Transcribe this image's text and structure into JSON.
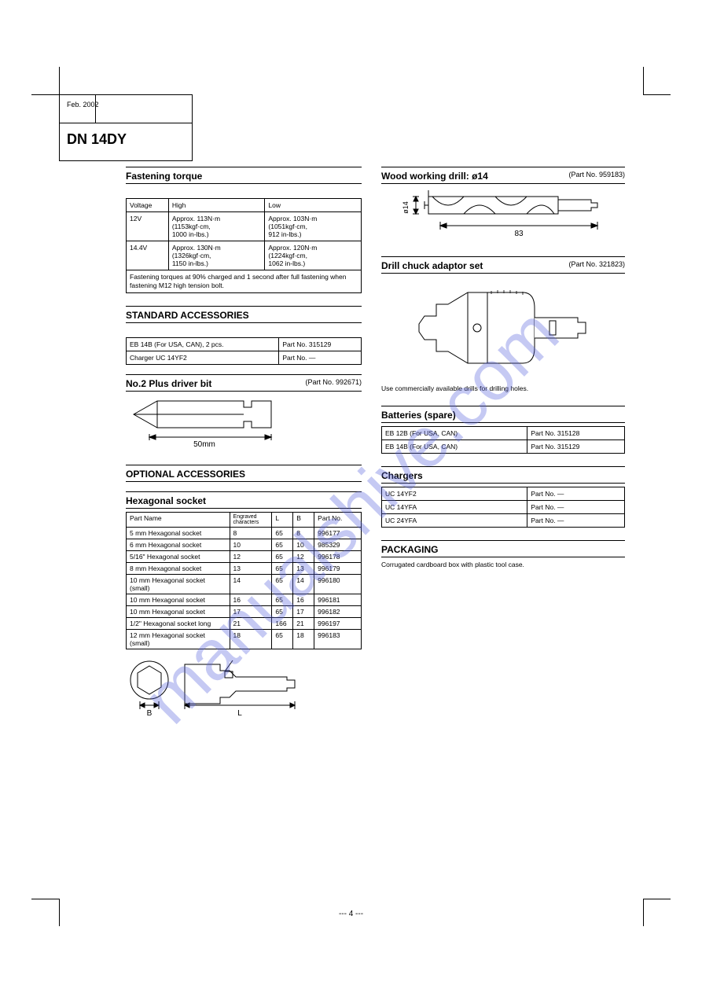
{
  "header": {
    "date": "Feb. 2002",
    "model": "DN 14DY"
  },
  "crop_style": {
    "stroke": "#000000",
    "len": 35
  },
  "left": {
    "sec1": {
      "title": "Fastening torque",
      "cols": [
        "Voltage",
        "High",
        "Low"
      ],
      "rows": [
        {
          "v": "12V",
          "hi": "Approx. 113N·m\n(1153kgf·cm,\n1000 in-lbs.)",
          "lo": "Approx. 103N·m\n(1051kgf·cm,\n912 in-lbs.)"
        },
        {
          "v": "14.4V",
          "hi": "Approx. 130N·m\n(1326kgf·cm,\n1150 in-lbs.)",
          "lo": "Approx. 120N·m\n(1224kgf·cm,\n1062 in-lbs.)"
        }
      ],
      "foot": "Fastening torques at 90% charged and 1 second after full fastening when fastening M12 high tension bolt."
    },
    "sec2": {
      "title": "STANDARD ACCESSORIES",
      "table": {
        "cols": [
          "",
          ""
        ],
        "rows": [
          [
            "EB 14B (For USA, CAN), 2 pcs.",
            "Part No. 315129"
          ],
          [
            "Charger UC 14YF2",
            "Part No. —"
          ]
        ]
      },
      "item_title": "No.2 Plus driver bit",
      "item_pn": "(Part No. 992671)",
      "bit_len": "50mm"
    },
    "sec3": {
      "title": "OPTIONAL ACCESSORIES",
      "item": "Hexagonal socket",
      "cols": [
        "Part Name",
        "Engraved characters",
        "L",
        "B",
        "Part No."
      ],
      "rows": [
        [
          "5 mm Hexagonal socket",
          "8",
          "65",
          "8",
          "996177"
        ],
        [
          "6 mm Hexagonal socket",
          "10",
          "65",
          "10",
          "985329"
        ],
        [
          "5/16\" Hexagonal socket",
          "12",
          "65",
          "12",
          "996178"
        ],
        [
          "8 mm Hexagonal socket",
          "13",
          "65",
          "13",
          "996179"
        ],
        [
          "10 mm Hexagonal socket (small)",
          "14",
          "65",
          "14",
          "996180"
        ],
        [
          "10 mm Hexagonal socket",
          "16",
          "65",
          "16",
          "996181"
        ],
        [
          "10 mm Hexagonal socket",
          "17",
          "65",
          "17",
          "996182"
        ],
        [
          "1/2\" Hexagonal socket long",
          "21",
          "166",
          "21",
          "996197"
        ],
        [
          "12 mm Hexagonal socket (small)",
          "18",
          "65",
          "18",
          "996183"
        ]
      ],
      "fig": {
        "B": "B",
        "L": "L"
      }
    }
  },
  "right": {
    "sec1": {
      "title": "Wood working drill: ø14",
      "pn": "(Part No. 959183)",
      "dia": "ø14",
      "len": "83"
    },
    "sec2": {
      "title": "Drill chuck adaptor set",
      "pn": "(Part No. 321823)",
      "desc": "Use commercially available drills for drilling holes."
    },
    "sec3": {
      "title": "Batteries (spare)",
      "rows": [
        [
          "EB 12B (For USA, CAN)",
          "Part No. 315128"
        ],
        [
          "EB 14B (For USA, CAN)",
          "Part No. 315129"
        ]
      ]
    },
    "sec4": {
      "title": "Chargers",
      "rows": [
        [
          "UC 14YF2",
          "Part No. —"
        ],
        [
          "UC 14YFA",
          "Part No. —"
        ],
        [
          "UC 24YFA",
          "Part No. —"
        ]
      ]
    },
    "sec5": {
      "title": "PACKAGING",
      "text": "Corrugated cardboard box with plastic tool case."
    }
  },
  "page_number": "--- 4 ---",
  "watermark": "manualshive.com",
  "watermark_color": "rgba(90,100,220,0.35)",
  "colors": {
    "stroke": "#000000",
    "bg": "#ffffff",
    "chuck_hatch": "#d0d0d0"
  }
}
